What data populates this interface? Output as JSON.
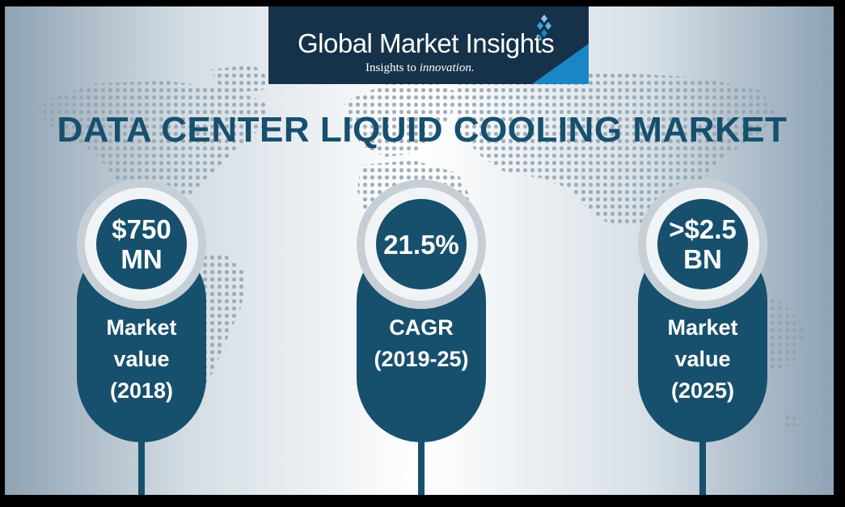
{
  "brand": {
    "name": "Global Market Insights",
    "tagline_start": "Insights to ",
    "tagline_emphasis": "innovation.",
    "colors": {
      "navy": "#15324a",
      "accent_blue": "#1a86c4",
      "teal": "#17506d"
    },
    "icon": "diamond-cluster-icon"
  },
  "title": "DATA CENTER LIQUID COOLING MARKET",
  "background": {
    "icon": "dotted-world-map"
  },
  "stats": [
    {
      "value_lines": [
        "$750",
        "MN"
      ],
      "label_lines": [
        "Market",
        "value",
        "(2018)"
      ]
    },
    {
      "value_lines": [
        "21.5%"
      ],
      "label_lines": [
        "CAGR",
        "(2019-25)"
      ]
    },
    {
      "value_lines": [
        ">$2.5",
        "BN"
      ],
      "label_lines": [
        "Market",
        "value",
        "(2025)"
      ]
    }
  ]
}
